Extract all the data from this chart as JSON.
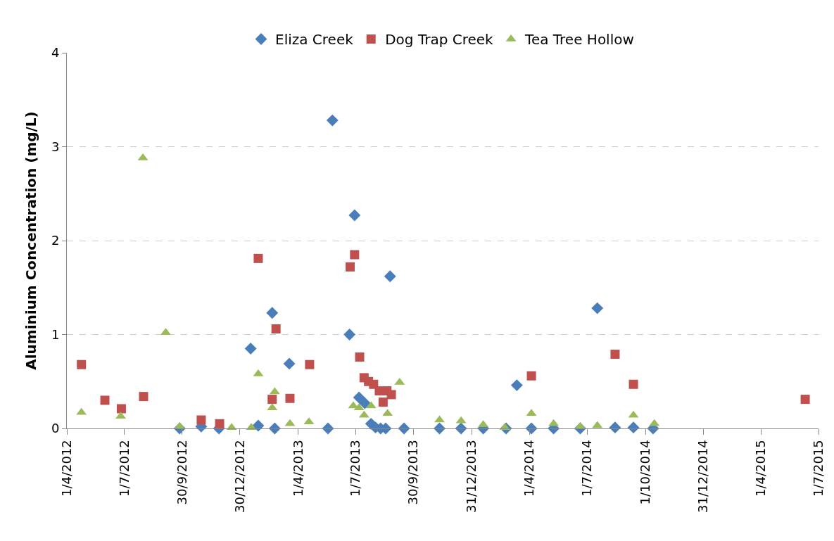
{
  "chart_data": {
    "type": "scatter",
    "ylabel": "Aluminium Concentration (mg/L)",
    "xlim": [
      "2012-04-01",
      "2015-07-01"
    ],
    "xticks": [
      {
        "value": "2012-04-01",
        "label": "1/4/2012"
      },
      {
        "value": "2012-07-01",
        "label": "1/7/2012"
      },
      {
        "value": "2012-09-30",
        "label": "30/9/2012"
      },
      {
        "value": "2012-12-30",
        "label": "30/12/2012"
      },
      {
        "value": "2013-04-01",
        "label": "1/4/2013"
      },
      {
        "value": "2013-07-01",
        "label": "1/7/2013"
      },
      {
        "value": "2013-09-30",
        "label": "30/9/2013"
      },
      {
        "value": "2013-12-31",
        "label": "31/12/2013"
      },
      {
        "value": "2014-04-01",
        "label": "1/4/2014"
      },
      {
        "value": "2014-07-01",
        "label": "1/7/2014"
      },
      {
        "value": "2014-10-01",
        "label": "1/10/2014"
      },
      {
        "value": "2014-12-31",
        "label": "31/12/2014"
      },
      {
        "value": "2015-04-01",
        "label": "1/4/2015"
      },
      {
        "value": "2015-07-01",
        "label": "1/7/2015"
      }
    ],
    "ylim": [
      0,
      4
    ],
    "yticks": [
      0,
      1,
      2,
      3,
      4
    ],
    "grid": "y",
    "legend": "top",
    "series": [
      {
        "name": "Eliza Creek",
        "color": "#4a7ebb",
        "marker": "diamond",
        "x": [
          "2012-09-26",
          "2012-10-30",
          "2012-11-27",
          "2013-01-16",
          "2013-01-28",
          "2013-02-19",
          "2013-02-23",
          "2013-03-18",
          "2013-05-18",
          "2013-05-25",
          "2013-06-21",
          "2013-06-29",
          "2013-07-06",
          "2013-07-15",
          "2013-07-25",
          "2013-08-01",
          "2013-08-09",
          "2013-08-17",
          "2013-08-24",
          "2013-09-15",
          "2013-11-10",
          "2013-12-14",
          "2014-01-18",
          "2014-02-23",
          "2014-03-12",
          "2014-04-04",
          "2014-05-09",
          "2014-06-20",
          "2014-07-17",
          "2014-08-14",
          "2014-09-12",
          "2014-10-13"
        ],
        "values": [
          0,
          0.02,
          0,
          0.85,
          0.03,
          1.23,
          0,
          0.69,
          0,
          3.28,
          1.0,
          2.27,
          0.33,
          0.27,
          0.05,
          0.01,
          0,
          0,
          1.62,
          0,
          0,
          0,
          0,
          0,
          0.46,
          0,
          0,
          0,
          1.28,
          0.01,
          0.01,
          0
        ]
      },
      {
        "name": "Dog Trap Creek",
        "color": "#c0504d",
        "marker": "square",
        "x": [
          "2012-04-24",
          "2012-05-31",
          "2012-06-26",
          "2012-07-31",
          "2012-10-30",
          "2012-11-28",
          "2013-01-28",
          "2013-02-19",
          "2013-02-25",
          "2013-03-19",
          "2013-04-19",
          "2013-06-22",
          "2013-06-29",
          "2013-07-07",
          "2013-07-14",
          "2013-07-21",
          "2013-07-29",
          "2013-08-07",
          "2013-08-13",
          "2013-08-19",
          "2013-08-26",
          "2014-04-04",
          "2014-08-14",
          "2014-09-12",
          "2015-06-10"
        ],
        "values": [
          0.68,
          0.3,
          0.21,
          0.34,
          0.09,
          0.05,
          1.81,
          0.31,
          1.06,
          0.32,
          0.68,
          1.72,
          1.85,
          0.76,
          0.54,
          0.5,
          0.47,
          0.4,
          0.28,
          0.4,
          0.36,
          0.56,
          0.79,
          0.47,
          0.31
        ]
      },
      {
        "name": "Tea Tree Hollow",
        "color": "#9bbb59",
        "marker": "triangle",
        "x": [
          "2012-04-24",
          "2012-06-25",
          "2012-07-30",
          "2012-09-04",
          "2012-09-26",
          "2012-12-17",
          "2013-01-17",
          "2013-01-28",
          "2013-02-19",
          "2013-02-23",
          "2013-03-19",
          "2013-04-18",
          "2013-06-27",
          "2013-07-06",
          "2013-07-14",
          "2013-07-25",
          "2013-08-20",
          "2013-09-08",
          "2013-11-10",
          "2013-12-14",
          "2014-01-18",
          "2014-02-21",
          "2014-04-04",
          "2014-05-09",
          "2014-06-20",
          "2014-07-17",
          "2014-09-12",
          "2014-10-15"
        ],
        "values": [
          0.17,
          0.13,
          2.88,
          1.02,
          0.02,
          0.01,
          0.01,
          0.58,
          0.22,
          0.39,
          0.05,
          0.07,
          0.24,
          0.22,
          0.14,
          0.24,
          0.16,
          0.49,
          0.09,
          0.08,
          0.04,
          0.01,
          0.16,
          0.05,
          0.02,
          0.03,
          0.14,
          0.05
        ]
      }
    ]
  }
}
